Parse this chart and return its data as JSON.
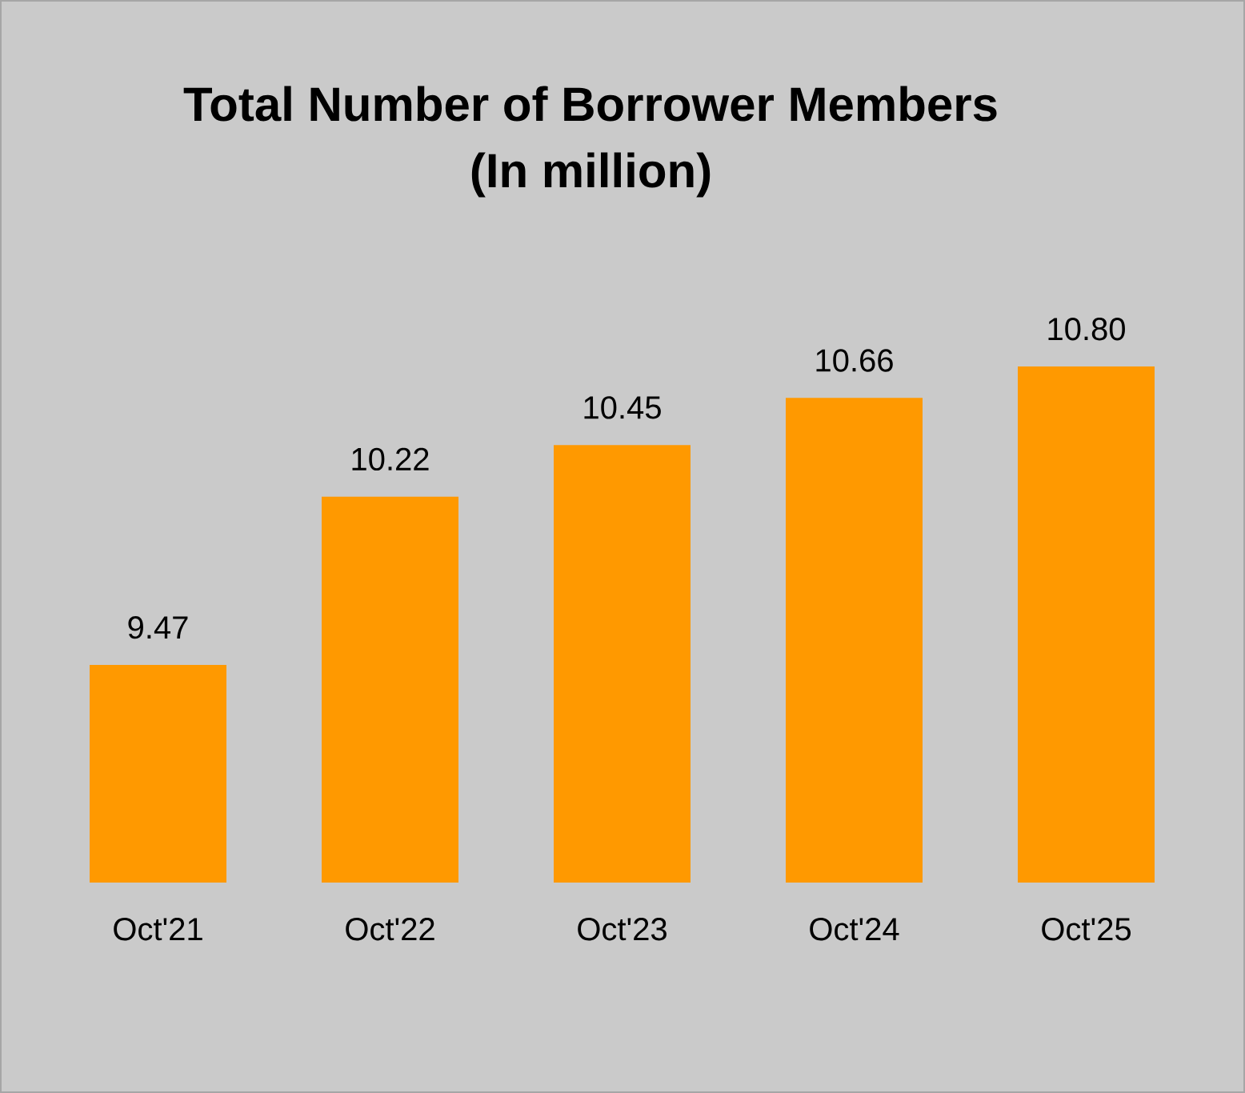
{
  "chart_data": {
    "type": "bar",
    "title": "Total Number of Borrower Members",
    "subtitle": "(In million)",
    "categories": [
      "Oct'21",
      "Oct'22",
      "Oct'23",
      "Oct'24",
      "Oct'25"
    ],
    "values": [
      9.47,
      10.22,
      10.45,
      10.66,
      10.8
    ],
    "value_labels": [
      "9.47",
      "10.22",
      "10.45",
      "10.66",
      "10.80"
    ],
    "color": "#ff9900",
    "ylim": [
      8.5,
      10.8
    ],
    "tick_labels": "x"
  }
}
